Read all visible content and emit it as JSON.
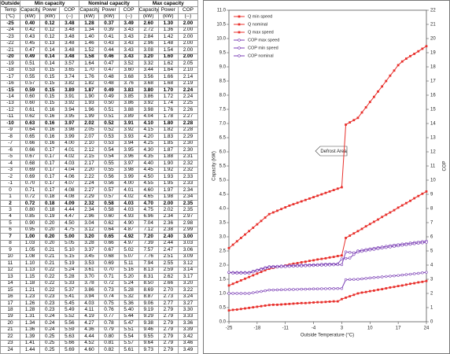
{
  "table": {
    "header": [
      [
        "Outside",
        "Min capacity",
        "Nominal capacity",
        "Max capacity"
      ],
      [
        "Temp",
        "Capacity",
        "Power",
        "COP",
        "Capacity",
        "Power",
        "COP",
        "Capacity",
        "Power",
        "COP"
      ],
      [
        "(°C)",
        "(kW)",
        "(kW)",
        "(--)",
        "(kW)",
        "(kW)",
        "(--)",
        "(kW)",
        "(kW)",
        "(--)"
      ]
    ],
    "bold_rows": [
      0,
      5,
      10,
      15,
      27,
      32
    ],
    "rows": [
      [
        "-25",
        "0.40",
        "0.12",
        "3.48",
        "1.28",
        "0.37",
        "3.49",
        "2.60",
        "1.30",
        "2.00"
      ],
      [
        "-24",
        "0.42",
        "0.12",
        "3.48",
        "1.34",
        "0.39",
        "3.43",
        "2.72",
        "1.36",
        "2.00"
      ],
      [
        "-23",
        "0.43",
        "0.12",
        "3.48",
        "1.40",
        "0.41",
        "3.43",
        "2.84",
        "1.42",
        "2.00"
      ],
      [
        "-22",
        "0.45",
        "0.13",
        "3.48",
        "1.46",
        "0.43",
        "3.43",
        "2.96",
        "1.48",
        "2.00"
      ],
      [
        "-21",
        "0.47",
        "0.14",
        "3.48",
        "1.52",
        "0.44",
        "3.43",
        "3.08",
        "1.54",
        "2.00"
      ],
      [
        "-20",
        "0.49",
        "0.14",
        "3.48",
        "1.58",
        "0.46",
        "3.43",
        "3.20",
        "1.60",
        "2.00"
      ],
      [
        "-19",
        "0.51",
        "0.14",
        "3.57",
        "1.64",
        "0.47",
        "3.52",
        "3.32",
        "1.62",
        "2.05"
      ],
      [
        "-18",
        "0.53",
        "0.15",
        "3.65",
        "1.70",
        "0.47",
        "3.60",
        "3.44",
        "1.64",
        "2.10"
      ],
      [
        "-17",
        "0.55",
        "0.15",
        "3.74",
        "1.76",
        "0.48",
        "3.68",
        "3.56",
        "1.66",
        "2.14"
      ],
      [
        "-16",
        "0.57",
        "0.15",
        "3.82",
        "1.82",
        "0.48",
        "3.76",
        "3.68",
        "1.68",
        "2.19"
      ],
      [
        "-15",
        "0.59",
        "0.15",
        "3.89",
        "1.87",
        "0.49",
        "3.83",
        "3.80",
        "1.70",
        "2.24"
      ],
      [
        "-14",
        "0.60",
        "0.15",
        "3.91",
        "1.90",
        "0.49",
        "3.85",
        "3.86",
        "1.72",
        "2.24"
      ],
      [
        "-13",
        "0.60",
        "0.15",
        "3.92",
        "1.93",
        "0.50",
        "3.86",
        "3.92",
        "1.74",
        "2.25"
      ],
      [
        "-12",
        "0.61",
        "0.16",
        "3.94",
        "1.96",
        "0.51",
        "3.88",
        "3.98",
        "1.76",
        "2.26"
      ],
      [
        "-11",
        "0.62",
        "0.16",
        "3.95",
        "1.99",
        "0.51",
        "3.89",
        "4.04",
        "1.78",
        "2.27"
      ],
      [
        "-10",
        "0.63",
        "0.16",
        "3.97",
        "2.02",
        "0.52",
        "3.91",
        "4.10",
        "1.80",
        "2.28"
      ],
      [
        "-9",
        "0.64",
        "0.16",
        "3.98",
        "2.05",
        "0.52",
        "3.92",
        "4.15",
        "1.82",
        "2.28"
      ],
      [
        "-8",
        "0.65",
        "0.16",
        "3.99",
        "2.07",
        "0.53",
        "3.93",
        "4.20",
        "1.83",
        "2.29"
      ],
      [
        "-7",
        "0.66",
        "0.16",
        "4.00",
        "2.10",
        "0.53",
        "3.94",
        "4.25",
        "1.85",
        "2.30"
      ],
      [
        "-6",
        "0.66",
        "0.17",
        "4.01",
        "2.12",
        "0.54",
        "3.95",
        "4.30",
        "1.87",
        "2.30"
      ],
      [
        "-5",
        "0.67",
        "0.17",
        "4.02",
        "2.15",
        "0.54",
        "3.96",
        "4.35",
        "1.88",
        "2.31"
      ],
      [
        "-4",
        "0.68",
        "0.17",
        "4.03",
        "2.17",
        "0.55",
        "3.97",
        "4.40",
        "1.90",
        "2.32"
      ],
      [
        "-3",
        "0.69",
        "0.17",
        "4.04",
        "2.20",
        "0.55",
        "3.98",
        "4.45",
        "1.92",
        "2.32"
      ],
      [
        "-2",
        "0.69",
        "0.17",
        "4.06",
        "2.22",
        "0.56",
        "3.99",
        "4.50",
        "1.93",
        "2.33"
      ],
      [
        "-1",
        "0.70",
        "0.17",
        "4.07",
        "2.24",
        "0.56",
        "4.00",
        "4.55",
        "1.95",
        "2.33"
      ],
      [
        "0",
        "0.71",
        "0.17",
        "4.08",
        "2.27",
        "0.57",
        "4.01",
        "4.60",
        "1.97",
        "2.34"
      ],
      [
        "1",
        "0.72",
        "0.18",
        "4.08",
        "2.29",
        "0.57",
        "4.02",
        "4.65",
        "1.98",
        "2.34"
      ],
      [
        "2",
        "0.72",
        "0.18",
        "4.09",
        "2.32",
        "0.58",
        "4.03",
        "4.70",
        "2.00",
        "2.35"
      ],
      [
        "3",
        "0.80",
        "0.18",
        "4.44",
        "2.34",
        "0.58",
        "4.03",
        "4.75",
        "2.02",
        "2.35"
      ],
      [
        "4",
        "0.85",
        "0.19",
        "4.47",
        "2.96",
        "0.60",
        "4.93",
        "6.96",
        "2.34",
        "2.97"
      ],
      [
        "5",
        "0.90",
        "0.20",
        "4.50",
        "3.04",
        "0.62",
        "4.90",
        "7.04",
        "2.36",
        "2.98"
      ],
      [
        "6",
        "0.95",
        "0.20",
        "4.75",
        "3.12",
        "0.64",
        "4.87",
        "7.12",
        "2.38",
        "2.99"
      ],
      [
        "7",
        "1.00",
        "0.20",
        "5.00",
        "3.20",
        "0.65",
        "4.92",
        "7.20",
        "2.40",
        "3.00"
      ],
      [
        "8",
        "1.03",
        "0.20",
        "5.05",
        "3.28",
        "0.66",
        "4.97",
        "7.39",
        "2.44",
        "3.03"
      ],
      [
        "9",
        "1.05",
        "0.21",
        "5.10",
        "3.37",
        "0.67",
        "5.02",
        "7.57",
        "2.47",
        "3.06"
      ],
      [
        "10",
        "1.08",
        "0.21",
        "5.15",
        "3.45",
        "0.68",
        "5.07",
        "7.76",
        "2.51",
        "3.09"
      ],
      [
        "11",
        "1.10",
        "0.21",
        "5.19",
        "3.53",
        "0.69",
        "5.11",
        "7.94",
        "2.55",
        "3.12"
      ],
      [
        "12",
        "1.13",
        "0.22",
        "5.24",
        "3.61",
        "0.70",
        "5.16",
        "8.13",
        "2.59",
        "3.14"
      ],
      [
        "13",
        "1.15",
        "0.22",
        "5.28",
        "3.70",
        "0.71",
        "5.20",
        "8.31",
        "2.62",
        "3.17"
      ],
      [
        "14",
        "1.18",
        "0.22",
        "5.33",
        "3.78",
        "0.72",
        "5.24",
        "8.50",
        "2.66",
        "3.20"
      ],
      [
        "15",
        "1.21",
        "0.22",
        "5.37",
        "3.86",
        "0.73",
        "5.28",
        "8.69",
        "2.70",
        "3.22"
      ],
      [
        "16",
        "1.23",
        "0.23",
        "5.41",
        "3.94",
        "0.74",
        "5.32",
        "8.87",
        "2.73",
        "3.24"
      ],
      [
        "17",
        "1.26",
        "0.23",
        "5.45",
        "4.03",
        "0.75",
        "5.36",
        "9.06",
        "2.77",
        "3.27"
      ],
      [
        "18",
        "1.28",
        "0.23",
        "5.49",
        "4.11",
        "0.76",
        "5.40",
        "9.19",
        "2.79",
        "3.30"
      ],
      [
        "19",
        "1.31",
        "0.24",
        "5.52",
        "4.19",
        "0.77",
        "5.44",
        "9.29",
        "2.79",
        "3.33"
      ],
      [
        "20",
        "1.34",
        "0.24",
        "5.56",
        "4.27",
        "0.78",
        "5.47",
        "9.38",
        "2.79",
        "3.36"
      ],
      [
        "21",
        "1.36",
        "0.24",
        "5.59",
        "4.36",
        "0.79",
        "5.51",
        "9.46",
        "2.79",
        "3.39"
      ],
      [
        "22",
        "1.39",
        "0.25",
        "5.63",
        "4.44",
        "0.80",
        "5.54",
        "9.55",
        "2.79",
        "3.42"
      ],
      [
        "23",
        "1.41",
        "0.25",
        "5.66",
        "4.52",
        "0.81",
        "5.57",
        "9.64",
        "2.79",
        "3.46"
      ],
      [
        "24",
        "1.44",
        "0.25",
        "5.69",
        "4.60",
        "0.82",
        "5.61",
        "9.73",
        "2.79",
        "3.49"
      ]
    ]
  },
  "chart_data": {
    "type": "line",
    "x_label": "Outside Temperature (°C)",
    "y_label": "Capacity (kW)",
    "y2_label": "COP",
    "annotation": "Defrost Area",
    "xlim": [
      -25,
      24
    ],
    "xticks": [
      -25,
      -18,
      -11,
      -4,
      3,
      10,
      17,
      24
    ],
    "ylim": [
      0,
      11
    ],
    "yticks": [
      {
        "value": 0,
        "label": "0.0"
      },
      {
        "value": 0.5,
        "label": "0.5"
      },
      {
        "value": 1,
        "label": "1.0"
      },
      {
        "value": 1.5,
        "label": "1.5"
      },
      {
        "value": 2,
        "label": "2.0"
      },
      {
        "value": 2.5,
        "label": "2.5"
      },
      {
        "value": 3,
        "label": "3.0"
      },
      {
        "value": 3.5,
        "label": "3.5"
      },
      {
        "value": 4,
        "label": "4.0"
      },
      {
        "value": 4.5,
        "label": "4.5"
      },
      {
        "value": 5,
        "label": "5.0"
      },
      {
        "value": 5.5,
        "label": "5.5"
      },
      {
        "value": 6,
        "label": "6.0"
      },
      {
        "value": 6.5,
        "label": "6.5"
      },
      {
        "value": 7,
        "label": "7.0"
      },
      {
        "value": 7.5,
        "label": "7.5"
      },
      {
        "value": 8,
        "label": "8.0"
      },
      {
        "value": 8.5,
        "label": "8.5"
      },
      {
        "value": 9,
        "label": "9.0"
      },
      {
        "value": 9.5,
        "label": "9.5"
      },
      {
        "value": 10,
        "label": "10.0"
      },
      {
        "value": 10.5,
        "label": "10.5"
      },
      {
        "value": 11,
        "label": "11.0"
      }
    ],
    "y2lim": [
      0,
      22
    ],
    "y2ticks": [
      0,
      1,
      2,
      3,
      4,
      5,
      6,
      7,
      8,
      9,
      10,
      11,
      12,
      13,
      14,
      15,
      16,
      17,
      18,
      19,
      20,
      21,
      22
    ],
    "legend": "upper left",
    "x": [
      -25,
      -24,
      -23,
      -22,
      -21,
      -20,
      -19,
      -18,
      -17,
      -16,
      -15,
      -14,
      -13,
      -12,
      -11,
      -10,
      -9,
      -8,
      -7,
      -6,
      -5,
      -4,
      -3,
      -2,
      -1,
      0,
      1,
      2,
      3,
      4,
      5,
      6,
      7,
      8,
      9,
      10,
      11,
      12,
      13,
      14,
      15,
      16,
      17,
      18,
      19,
      20,
      21,
      22,
      23,
      24
    ],
    "series": [
      {
        "name": "Q min speed",
        "color": "#e8302c",
        "marker": "square",
        "values": [
          0.4,
          0.42,
          0.43,
          0.45,
          0.47,
          0.49,
          0.51,
          0.53,
          0.55,
          0.57,
          0.59,
          0.6,
          0.6,
          0.61,
          0.62,
          0.63,
          0.64,
          0.65,
          0.66,
          0.66,
          0.67,
          0.68,
          0.69,
          0.69,
          0.7,
          0.71,
          0.72,
          0.72,
          0.8,
          0.85,
          0.9,
          0.95,
          1.0,
          1.03,
          1.05,
          1.08,
          1.1,
          1.13,
          1.15,
          1.18,
          1.21,
          1.23,
          1.26,
          1.28,
          1.31,
          1.34,
          1.36,
          1.39,
          1.41,
          1.44
        ]
      },
      {
        "name": "Q nominal",
        "color": "#e8302c",
        "marker": "square",
        "values": [
          1.28,
          1.34,
          1.4,
          1.46,
          1.52,
          1.58,
          1.64,
          1.7,
          1.76,
          1.82,
          1.87,
          1.9,
          1.93,
          1.96,
          1.99,
          2.02,
          2.05,
          2.07,
          2.1,
          2.12,
          2.15,
          2.17,
          2.2,
          2.22,
          2.24,
          2.27,
          2.29,
          2.32,
          2.34,
          2.96,
          3.04,
          3.12,
          3.2,
          3.28,
          3.37,
          3.45,
          3.53,
          3.61,
          3.7,
          3.78,
          3.86,
          3.94,
          4.03,
          4.11,
          4.19,
          4.27,
          4.36,
          4.44,
          4.52,
          4.6
        ]
      },
      {
        "name": "Q max speed",
        "color": "#e8302c",
        "marker": "square",
        "values": [
          2.6,
          2.72,
          2.84,
          2.96,
          3.08,
          3.2,
          3.32,
          3.44,
          3.56,
          3.68,
          3.8,
          3.86,
          3.92,
          3.98,
          4.04,
          4.1,
          4.15,
          4.2,
          4.25,
          4.3,
          4.35,
          4.4,
          4.45,
          4.5,
          4.55,
          4.6,
          4.65,
          4.7,
          4.75,
          6.96,
          7.04,
          7.12,
          7.2,
          7.39,
          7.57,
          7.76,
          7.94,
          8.13,
          8.31,
          8.5,
          8.69,
          8.87,
          9.06,
          9.19,
          9.29,
          9.38,
          9.46,
          9.55,
          9.64,
          9.73
        ]
      },
      {
        "name": "COP max speed",
        "color": "#7b3fb5",
        "marker": "circle",
        "axis": "y2",
        "values": [
          2.0,
          2.0,
          2.0,
          2.0,
          2.0,
          2.0,
          2.05,
          2.1,
          2.14,
          2.19,
          2.24,
          2.24,
          2.25,
          2.26,
          2.27,
          2.28,
          2.28,
          2.29,
          2.3,
          2.3,
          2.31,
          2.32,
          2.32,
          2.33,
          2.33,
          2.34,
          2.34,
          2.35,
          2.35,
          2.97,
          2.98,
          2.99,
          3.0,
          3.03,
          3.06,
          3.09,
          3.12,
          3.14,
          3.17,
          3.2,
          3.22,
          3.24,
          3.27,
          3.3,
          3.33,
          3.36,
          3.39,
          3.42,
          3.46,
          3.49
        ]
      },
      {
        "name": "COP min speed",
        "color": "#7b3fb5",
        "marker": "circle",
        "axis": "y2",
        "values": [
          3.48,
          3.48,
          3.48,
          3.48,
          3.48,
          3.48,
          3.57,
          3.65,
          3.74,
          3.82,
          3.89,
          3.91,
          3.92,
          3.94,
          3.95,
          3.97,
          3.98,
          3.99,
          4.0,
          4.01,
          4.02,
          4.03,
          4.04,
          4.06,
          4.07,
          4.08,
          4.08,
          4.09,
          4.44,
          4.47,
          4.5,
          4.75,
          5.0,
          5.05,
          5.1,
          5.15,
          5.19,
          5.24,
          5.28,
          5.33,
          5.37,
          5.41,
          5.45,
          5.49,
          5.52,
          5.56,
          5.59,
          5.63,
          5.66,
          5.69
        ]
      },
      {
        "name": "COP nominal",
        "color": "#7b3fb5",
        "marker": "circle",
        "axis": "y2",
        "values": [
          3.49,
          3.43,
          3.43,
          3.43,
          3.43,
          3.43,
          3.52,
          3.6,
          3.68,
          3.76,
          3.83,
          3.85,
          3.86,
          3.88,
          3.89,
          3.91,
          3.92,
          3.93,
          3.94,
          3.95,
          3.96,
          3.97,
          3.98,
          3.99,
          4.0,
          4.01,
          4.02,
          4.03,
          4.03,
          4.93,
          4.9,
          4.87,
          4.92,
          4.97,
          5.02,
          5.07,
          5.11,
          5.16,
          5.2,
          5.24,
          5.28,
          5.32,
          5.36,
          5.4,
          5.44,
          5.47,
          5.51,
          5.54,
          5.57,
          5.61
        ]
      }
    ]
  }
}
